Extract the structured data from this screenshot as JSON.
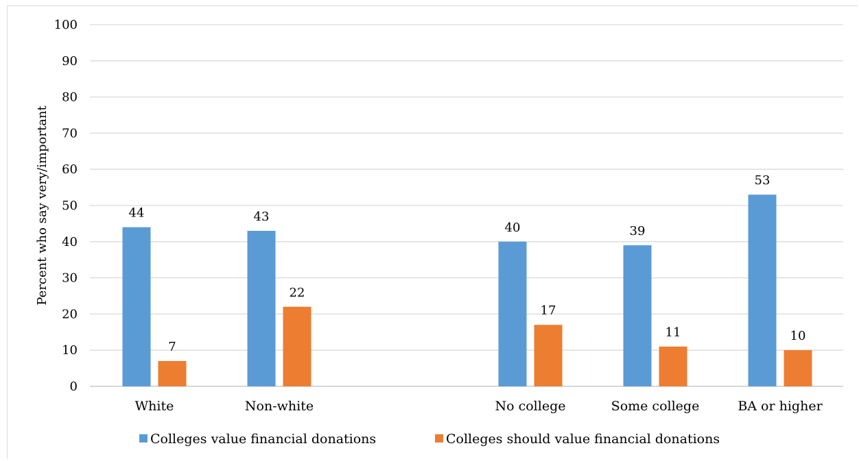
{
  "chart_data": {
    "type": "bar",
    "title": "",
    "xlabel": "",
    "ylabel": "Percent who say very/important",
    "ylim": [
      0,
      100
    ],
    "yticks": [
      0,
      10,
      20,
      30,
      40,
      50,
      60,
      70,
      80,
      90,
      100
    ],
    "grid": true,
    "legend_position": "bottom",
    "categories": [
      "White",
      "Non-white",
      "No college",
      "Some college",
      "BA or higher"
    ],
    "series": [
      {
        "name": "Colleges value financial donations",
        "color": "#5b9bd5",
        "values": [
          44,
          43,
          40,
          39,
          53
        ]
      },
      {
        "name": "Colleges should value financial donations",
        "color": "#ed7d31",
        "values": [
          7,
          22,
          17,
          11,
          10
        ]
      }
    ]
  }
}
